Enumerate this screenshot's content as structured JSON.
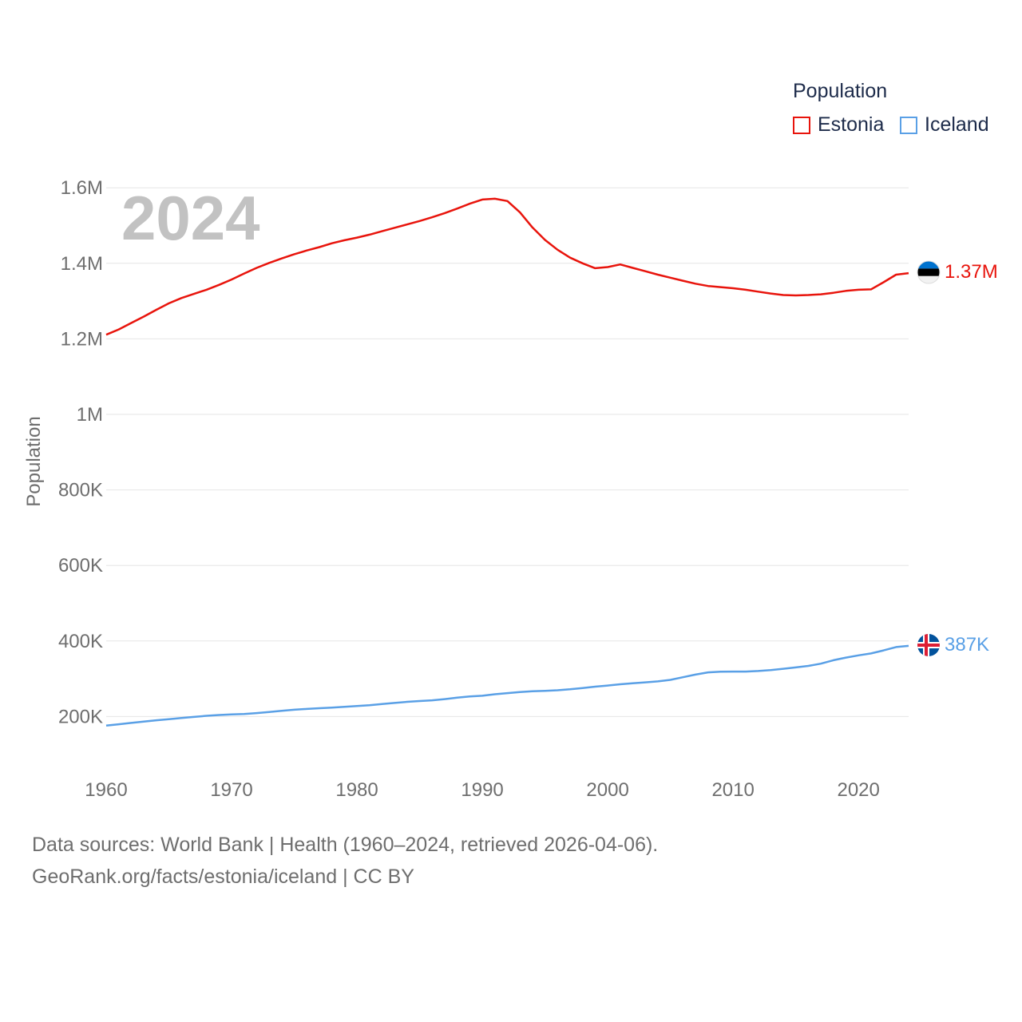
{
  "legend": {
    "title": "Population",
    "items": [
      {
        "label": "Estonia",
        "color": "#e8140c"
      },
      {
        "label": "Iceland",
        "color": "#5aa0e6"
      }
    ]
  },
  "year_label": "2024",
  "end_labels": {
    "estonia": "1.37M",
    "iceland": "387K"
  },
  "footer": {
    "line1": "Data sources: World Bank | Health (1960–2024, retrieved 2026-04-06).",
    "line2": "GeoRank.org/facts/estonia/iceland | CC BY"
  },
  "chart_data": {
    "type": "line",
    "title": "Population",
    "xlabel": "",
    "ylabel": "Population",
    "xlim": [
      1960,
      2024
    ],
    "ylim": [
      0,
      1600000
    ],
    "x_ticks": [
      1960,
      1970,
      1980,
      1990,
      2000,
      2010,
      2020
    ],
    "x_tick_labels": [
      "1960",
      "1970",
      "1980",
      "1990",
      "2000",
      "2010",
      "2020"
    ],
    "y_ticks": [
      200000,
      400000,
      600000,
      800000,
      1000000,
      1200000,
      1400000,
      1600000
    ],
    "y_tick_labels": [
      "200K",
      "400K",
      "600K",
      "800K",
      "1M",
      "1.2M",
      "1.4M",
      "1.6M"
    ],
    "grid": true,
    "legend_position": "top-right",
    "x": [
      1960,
      1961,
      1962,
      1963,
      1964,
      1965,
      1966,
      1967,
      1968,
      1969,
      1970,
      1971,
      1972,
      1973,
      1974,
      1975,
      1976,
      1977,
      1978,
      1979,
      1980,
      1981,
      1982,
      1983,
      1984,
      1985,
      1986,
      1987,
      1988,
      1989,
      1990,
      1991,
      1992,
      1993,
      1994,
      1995,
      1996,
      1997,
      1998,
      1999,
      2000,
      2001,
      2002,
      2003,
      2004,
      2005,
      2006,
      2007,
      2008,
      2009,
      2010,
      2011,
      2012,
      2013,
      2014,
      2015,
      2016,
      2017,
      2018,
      2019,
      2020,
      2021,
      2022,
      2023,
      2024
    ],
    "series": [
      {
        "name": "Estonia",
        "color": "#e8140c",
        "values": [
          1211000,
          1225000,
          1242000,
          1259000,
          1277000,
          1294000,
          1308000,
          1319000,
          1330000,
          1343000,
          1357000,
          1373000,
          1388000,
          1401000,
          1413000,
          1424000,
          1434000,
          1443000,
          1453000,
          1461000,
          1468000,
          1476000,
          1485000,
          1494000,
          1503000,
          1512000,
          1522000,
          1533000,
          1545000,
          1558000,
          1569000,
          1571000,
          1565000,
          1535000,
          1495000,
          1462000,
          1436000,
          1415000,
          1400000,
          1387000,
          1390000,
          1397000,
          1388000,
          1379000,
          1370000,
          1362000,
          1354000,
          1346000,
          1340000,
          1337000,
          1334000,
          1330000,
          1325000,
          1320000,
          1316000,
          1315000,
          1316000,
          1318000,
          1322000,
          1327000,
          1330000,
          1331000,
          1350000,
          1370000,
          1374000
        ]
      },
      {
        "name": "Iceland",
        "color": "#5aa0e6",
        "values": [
          176000,
          179500,
          183000,
          186500,
          190000,
          193000,
          196000,
          199000,
          202000,
          204000,
          205500,
          206500,
          209000,
          212000,
          215000,
          218000,
          220000,
          222000,
          223500,
          225500,
          228000,
          230000,
          233000,
          236000,
          239000,
          241000,
          243000,
          246000,
          250000,
          253000,
          255000,
          259000,
          262000,
          265000,
          267000,
          268000,
          269500,
          272000,
          275500,
          279000,
          282000,
          285500,
          288000,
          290500,
          293000,
          297000,
          304000,
          311000,
          317000,
          318500,
          319000,
          319000,
          320500,
          323000,
          326500,
          330000,
          334000,
          340000,
          349000,
          356000,
          362000,
          367000,
          375000,
          384000,
          387000
        ]
      }
    ]
  }
}
